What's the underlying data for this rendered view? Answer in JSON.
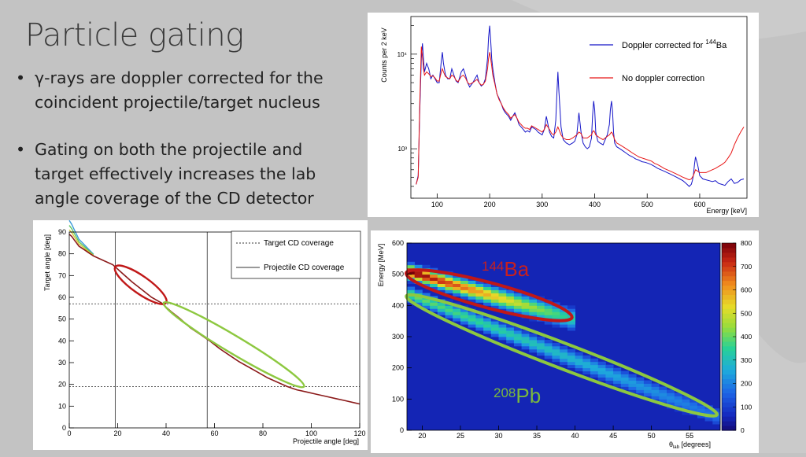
{
  "slide": {
    "title": "Particle gating",
    "bullets": [
      {
        "lines": [
          "γ-rays are doppler corrected for the",
          "coincident projectile/target nucleus"
        ]
      },
      {
        "lines": [
          "Gating on both the projectile and",
          "target effectively increases the lab",
          "angle coverage of the CD detector"
        ]
      }
    ],
    "bullet_symbol": "•"
  },
  "chart_data": [
    {
      "id": "spectrum",
      "type": "line",
      "xlabel": "Energy [keV]",
      "ylabel": "Counts per 2 keV",
      "xlim": [
        50,
        690
      ],
      "ylim": [
        300,
        25000
      ],
      "yscale": "log",
      "x_ticks": [
        100,
        200,
        300,
        400,
        500,
        600
      ],
      "y_ticks": [
        {
          "value": 1000,
          "label": "10³"
        },
        {
          "value": 10000,
          "label": "10⁴"
        }
      ],
      "legend_position": "top-right",
      "series": [
        {
          "name_parts": [
            "Doppler corrected for ",
            "144",
            "Ba"
          ],
          "color": "#1515c8",
          "x": [
            60,
            64,
            67,
            70,
            72,
            74,
            76,
            80,
            84,
            88,
            92,
            96,
            100,
            104,
            108,
            110,
            112,
            116,
            120,
            124,
            128,
            132,
            136,
            140,
            146,
            150,
            154,
            158,
            162,
            168,
            172,
            176,
            180,
            184,
            188,
            192,
            196,
            198,
            200,
            202,
            204,
            206,
            210,
            214,
            218,
            222,
            226,
            230,
            236,
            240,
            244,
            248,
            252,
            256,
            260,
            264,
            268,
            272,
            276,
            280,
            284,
            288,
            292,
            296,
            300,
            304,
            308,
            314,
            318,
            322,
            326,
            328,
            330,
            332,
            336,
            340,
            346,
            352,
            358,
            362,
            366,
            370,
            374,
            378,
            382,
            386,
            390,
            394,
            396,
            398,
            400,
            402,
            406,
            410,
            416,
            420,
            424,
            428,
            430,
            432,
            434,
            436,
            438,
            442,
            448,
            454,
            460,
            466,
            472,
            478,
            484,
            490,
            496,
            502,
            508,
            514,
            520,
            526,
            532,
            538,
            544,
            550,
            556,
            562,
            568,
            572,
            576,
            580,
            584,
            586,
            588,
            590,
            592,
            596,
            600,
            606,
            612,
            618,
            624,
            630,
            636,
            642,
            648,
            654,
            660,
            666,
            672,
            678,
            684
          ],
          "y": [
            420,
            520,
            2500,
            9000,
            13000,
            9000,
            6500,
            8000,
            7000,
            5500,
            6000,
            5500,
            5000,
            5000,
            8500,
            10500,
            8000,
            6000,
            5500,
            5500,
            7000,
            6000,
            5200,
            5000,
            6500,
            7000,
            6000,
            5000,
            4500,
            5000,
            5500,
            6000,
            5000,
            4600,
            4800,
            5500,
            9000,
            15000,
            20000,
            14000,
            9000,
            7000,
            5000,
            3800,
            3400,
            3000,
            2600,
            2400,
            2200,
            2000,
            2200,
            2400,
            2100,
            1800,
            1700,
            1600,
            1500,
            1550,
            1500,
            1700,
            1650,
            1600,
            1500,
            1450,
            1400,
            1600,
            2200,
            1500,
            1350,
            1300,
            2000,
            3800,
            6500,
            4000,
            1700,
            1250,
            1150,
            1100,
            1150,
            1200,
            1400,
            2400,
            1500,
            1150,
            1050,
            1000,
            1050,
            1300,
            2200,
            3200,
            2600,
            1500,
            1200,
            1150,
            1100,
            1250,
            1400,
            1800,
            2600,
            3200,
            2500,
            1500,
            1150,
            1050,
            1000,
            950,
            900,
            850,
            820,
            780,
            760,
            730,
            720,
            700,
            680,
            650,
            620,
            600,
            580,
            560,
            540,
            520,
            500,
            480,
            460,
            440,
            420,
            400,
            420,
            460,
            520,
            680,
            820,
            680,
            520,
            480,
            470,
            460,
            450,
            460,
            430,
            420,
            410,
            450,
            480,
            430,
            440,
            470,
            480
          ]
        },
        {
          "name": "No doppler correction",
          "color": "#e81818",
          "x": [
            60,
            64,
            67,
            70,
            72,
            74,
            76,
            80,
            84,
            88,
            92,
            96,
            100,
            104,
            108,
            110,
            112,
            116,
            120,
            124,
            128,
            132,
            136,
            140,
            146,
            150,
            154,
            158,
            162,
            168,
            172,
            176,
            180,
            184,
            188,
            192,
            196,
            198,
            200,
            202,
            204,
            206,
            210,
            214,
            218,
            222,
            226,
            230,
            236,
            240,
            244,
            248,
            252,
            256,
            260,
            264,
            268,
            272,
            276,
            280,
            284,
            288,
            292,
            296,
            300,
            304,
            308,
            314,
            318,
            322,
            326,
            328,
            330,
            332,
            336,
            340,
            346,
            352,
            358,
            362,
            366,
            370,
            374,
            378,
            382,
            386,
            390,
            394,
            396,
            398,
            400,
            402,
            406,
            410,
            416,
            420,
            424,
            428,
            430,
            432,
            434,
            436,
            438,
            442,
            448,
            454,
            460,
            466,
            472,
            478,
            484,
            490,
            496,
            502,
            508,
            514,
            520,
            526,
            532,
            538,
            544,
            550,
            556,
            562,
            568,
            572,
            576,
            580,
            584,
            586,
            588,
            590,
            592,
            596,
            600,
            606,
            612,
            618,
            624,
            630,
            636,
            642,
            648,
            654,
            660,
            666,
            672,
            678,
            684
          ],
          "y": [
            420,
            500,
            3000,
            12000,
            9500,
            7000,
            6000,
            6500,
            6200,
            5800,
            5900,
            5600,
            5200,
            5200,
            6500,
            7000,
            6500,
            5800,
            5600,
            5500,
            6000,
            5800,
            5300,
            5100,
            5800,
            6000,
            5600,
            5000,
            4800,
            5000,
            5200,
            5400,
            5000,
            4700,
            4800,
            5200,
            7000,
            9000,
            10500,
            9000,
            7500,
            6000,
            4800,
            3800,
            3300,
            3000,
            2700,
            2500,
            2300,
            2100,
            2200,
            2300,
            2100,
            1900,
            1800,
            1700,
            1650,
            1650,
            1600,
            1750,
            1700,
            1650,
            1600,
            1550,
            1500,
            1600,
            1800,
            1600,
            1450,
            1400,
            1500,
            1600,
            1700,
            1600,
            1400,
            1300,
            1250,
            1250,
            1300,
            1350,
            1400,
            1500,
            1450,
            1300,
            1300,
            1300,
            1350,
            1400,
            1500,
            1550,
            1500,
            1400,
            1350,
            1300,
            1250,
            1300,
            1350,
            1400,
            1450,
            1500,
            1450,
            1350,
            1250,
            1150,
            1100,
            1050,
            1000,
            950,
            900,
            860,
            820,
            800,
            780,
            760,
            740,
            700,
            680,
            650,
            620,
            600,
            580,
            560,
            540,
            520,
            500,
            490,
            480,
            470,
            480,
            500,
            520,
            560,
            600,
            580,
            560,
            560,
            560,
            580,
            600,
            620,
            650,
            680,
            720,
            800,
            900,
            1100,
            1300,
            1500,
            1700
          ]
        }
      ]
    },
    {
      "id": "angle",
      "type": "line",
      "xlabel": "Projectile angle [deg]",
      "ylabel": "Target angle [deg]",
      "xlim": [
        0,
        120
      ],
      "ylim": [
        0,
        90
      ],
      "x_ticks": [
        0,
        20,
        40,
        60,
        80,
        100,
        120
      ],
      "y_ticks": [
        0,
        10,
        20,
        30,
        40,
        50,
        60,
        70,
        80,
        90
      ],
      "legend_position": "top-right",
      "legend": [
        "Target CD coverage",
        "Projectile CD coverage"
      ],
      "target_cd_coverage_deg": [
        19,
        57
      ],
      "projectile_cd_coverage_deg": [
        19,
        57
      ],
      "kinematic_curve": {
        "color": "#8b1a1a",
        "x": [
          0,
          1,
          2,
          3,
          4,
          6,
          8,
          10,
          14,
          18,
          22,
          26,
          30,
          34,
          38,
          42,
          46,
          50,
          54,
          58,
          62,
          66,
          70,
          74,
          78,
          82,
          86,
          90,
          94,
          98,
          102,
          106,
          110,
          114,
          118,
          120
        ],
        "y": [
          89,
          88,
          86.5,
          85,
          83.5,
          82,
          80.5,
          79,
          77,
          75,
          71,
          67,
          63.5,
          60,
          57.5,
          53.5,
          50,
          46,
          43,
          40,
          36.5,
          33.5,
          30.5,
          28,
          25.5,
          23,
          21,
          19,
          17.5,
          16.5,
          15.5,
          14.5,
          13.5,
          12.5,
          11.5,
          11
        ]
      },
      "ellipses": [
        {
          "name": "144Ba",
          "color": "#c01818",
          "from": [
            19,
            74
          ],
          "to": [
            40,
            57.5
          ],
          "half_width": 4
        },
        {
          "name": "208Pb",
          "color": "#8dc840",
          "from": [
            39,
            57.5
          ],
          "to": [
            97,
            19
          ],
          "half_width": 4
        }
      ]
    },
    {
      "id": "energy-heatmap",
      "type": "heatmap",
      "xlabel_parts": [
        "θ",
        "lab",
        " [degrees]"
      ],
      "ylabel": "Energy [MeV]",
      "xlim": [
        18,
        59
      ],
      "ylim": [
        0,
        600
      ],
      "x_ticks": [
        20,
        25,
        30,
        35,
        40,
        45,
        50,
        55
      ],
      "y_ticks": [
        0,
        100,
        200,
        300,
        400,
        500,
        600
      ],
      "colorbar_ticks": [
        0,
        100,
        200,
        300,
        400,
        500,
        600,
        700,
        800
      ],
      "zlim": [
        0,
        800
      ],
      "bands": [
        {
          "name": "144Ba",
          "color": "#c01818",
          "x_from": 19,
          "x_to": 38,
          "y_from": 500,
          "y_to": 365,
          "peak": 790
        },
        {
          "name": "208Pb",
          "color": "#8dc840",
          "x_from": 19,
          "x_to": 57,
          "y_from": 425,
          "y_to": 55,
          "peak": 400
        }
      ],
      "labels": [
        {
          "mass": "144",
          "element": "Ba",
          "color": "#c8201e"
        },
        {
          "mass": "208",
          "element": "Pb",
          "color": "#6aa82e"
        }
      ]
    }
  ]
}
